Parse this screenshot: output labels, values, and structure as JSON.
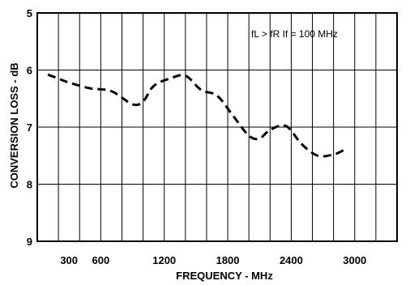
{
  "chart_data": {
    "type": "line",
    "title": "",
    "xlabel": "FREQUENCY - MHz",
    "ylabel": "CONVERSION LOSS - dB",
    "xlim": [
      0,
      3400
    ],
    "ylim": [
      5,
      9
    ],
    "y_inverted": true,
    "grid": true,
    "x_ticks": [
      300,
      600,
      1200,
      1800,
      2400,
      3000
    ],
    "x_tick_labels": [
      "300",
      "600",
      "1200",
      "1800",
      "2400",
      "3000"
    ],
    "y_ticks": [
      5,
      6,
      7,
      8,
      9
    ],
    "y_tick_labels": [
      "5",
      "6",
      "7",
      "8",
      "9"
    ],
    "annotation": {
      "text": "fL > fR   If = 100 MHz"
    },
    "series": [
      {
        "line_style": "dashed",
        "x": [
          100,
          200,
          300,
          500,
          700,
          900,
          1000,
          1100,
          1250,
          1400,
          1550,
          1700,
          1850,
          2000,
          2100,
          2200,
          2350,
          2500,
          2650,
          2800,
          2900
        ],
        "y": [
          6.08,
          6.15,
          6.22,
          6.32,
          6.37,
          6.6,
          6.55,
          6.28,
          6.15,
          6.1,
          6.35,
          6.45,
          6.8,
          7.15,
          7.2,
          7.05,
          6.98,
          7.3,
          7.5,
          7.48,
          7.4
        ]
      }
    ]
  }
}
